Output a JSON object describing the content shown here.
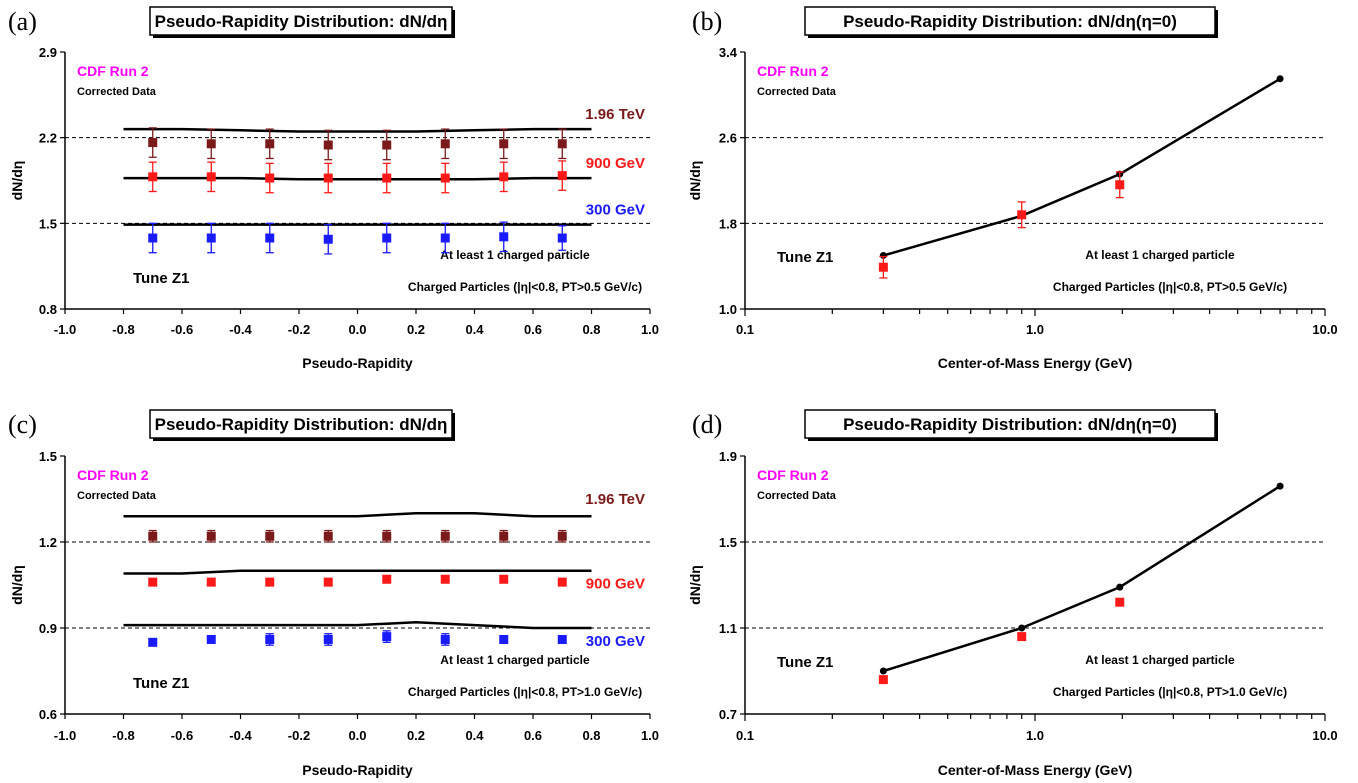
{
  "chart_data": [
    {
      "panel": "(a)",
      "type": "line",
      "title": "Pseudo-Rapidity Distribution: dN/dη",
      "xlabel": "Pseudo-Rapidity",
      "ylabel": "dN/dη",
      "xscale": "linear",
      "xlim": [
        -1.0,
        1.0
      ],
      "ylim": [
        0.8,
        2.9
      ],
      "xticks": [
        "-1.0",
        "-0.8",
        "-0.6",
        "-0.4",
        "-0.2",
        "0.0",
        "0.2",
        "0.4",
        "0.6",
        "0.8",
        "1.0"
      ],
      "yticks": [
        "0.8",
        "1.5",
        "2.2",
        "2.9"
      ],
      "gridlines_y": [
        1.5,
        2.2
      ],
      "experiment_label": "CDF Run 2",
      "data_label": "Corrected Data",
      "tune_label": "Tune Z1",
      "note1": "At least 1 charged particle",
      "note2": "Charged Particles (|η|<0.8, PT>0.5 GeV/c)",
      "series": [
        {
          "name": "1.96 TeV",
          "color": "#7b1a1a",
          "data_x": [
            -0.7,
            -0.5,
            -0.3,
            -0.1,
            0.1,
            0.3,
            0.5,
            0.7
          ],
          "data_y": [
            2.16,
            2.15,
            2.15,
            2.14,
            2.14,
            2.15,
            2.15,
            2.15
          ],
          "err": [
            0.12,
            0.12,
            0.12,
            0.12,
            0.12,
            0.12,
            0.12,
            0.12
          ],
          "model_x": [
            -0.8,
            -0.6,
            -0.4,
            -0.2,
            0.0,
            0.2,
            0.4,
            0.6,
            0.8
          ],
          "model_y": [
            2.27,
            2.27,
            2.26,
            2.25,
            2.25,
            2.25,
            2.26,
            2.27,
            2.27
          ]
        },
        {
          "name": "900 GeV",
          "color": "#ff1a1a",
          "data_x": [
            -0.7,
            -0.5,
            -0.3,
            -0.1,
            0.1,
            0.3,
            0.5,
            0.7
          ],
          "data_y": [
            1.88,
            1.88,
            1.87,
            1.87,
            1.87,
            1.87,
            1.88,
            1.89
          ],
          "err": [
            0.12,
            0.12,
            0.12,
            0.12,
            0.12,
            0.12,
            0.12,
            0.12
          ],
          "model_x": [
            -0.8,
            -0.6,
            -0.4,
            -0.2,
            0.0,
            0.2,
            0.4,
            0.6,
            0.8
          ],
          "model_y": [
            1.87,
            1.87,
            1.87,
            1.86,
            1.86,
            1.86,
            1.86,
            1.87,
            1.87
          ]
        },
        {
          "name": "300 GeV",
          "color": "#1a1aff",
          "data_x": [
            -0.7,
            -0.5,
            -0.3,
            -0.1,
            0.1,
            0.3,
            0.5,
            0.7
          ],
          "data_y": [
            1.38,
            1.38,
            1.38,
            1.37,
            1.38,
            1.38,
            1.39,
            1.38
          ],
          "err": [
            0.12,
            0.12,
            0.12,
            0.12,
            0.12,
            0.12,
            0.12,
            0.1
          ],
          "model_x": [
            -0.8,
            -0.6,
            -0.4,
            -0.2,
            0.0,
            0.2,
            0.4,
            0.6,
            0.8
          ],
          "model_y": [
            1.49,
            1.49,
            1.49,
            1.49,
            1.49,
            1.49,
            1.49,
            1.49,
            1.49
          ]
        }
      ]
    },
    {
      "panel": "(b)",
      "type": "line",
      "title": "Pseudo-Rapidity Distribution: dN/dη(η=0)",
      "xlabel": "Center-of-Mass Energy (GeV)",
      "ylabel": "dN/dη",
      "xscale": "log",
      "xlim": [
        0.1,
        10.0
      ],
      "ylim": [
        1.0,
        3.4
      ],
      "xticks": [
        "0.1",
        "1.0",
        "10.0"
      ],
      "yticks": [
        "1.0",
        "1.8",
        "2.6",
        "3.4"
      ],
      "gridlines_y": [
        1.8,
        2.6
      ],
      "experiment_label": "CDF Run 2",
      "data_label": "Corrected Data",
      "tune_label": "Tune Z1",
      "note1": "At least 1 charged particle",
      "note2": "Charged Particles (|η|<0.8, PT>0.5 GeV/c)",
      "data": {
        "color": "#ff1a1a",
        "x": [
          0.3,
          0.9,
          1.96
        ],
        "y": [
          1.39,
          1.88,
          2.16
        ],
        "err": [
          0.1,
          0.12,
          0.12
        ]
      },
      "model": {
        "color": "#000000",
        "x": [
          0.3,
          0.9,
          1.96,
          7.0
        ],
        "y": [
          1.5,
          1.87,
          2.26,
          3.15
        ]
      }
    },
    {
      "panel": "(c)",
      "type": "line",
      "title": "Pseudo-Rapidity Distribution: dN/dη",
      "xlabel": "Pseudo-Rapidity",
      "ylabel": "dN/dη",
      "xscale": "linear",
      "xlim": [
        -1.0,
        1.0
      ],
      "ylim": [
        0.6,
        1.5
      ],
      "xticks": [
        "-1.0",
        "-0.8",
        "-0.6",
        "-0.4",
        "-0.2",
        "0.0",
        "0.2",
        "0.4",
        "0.6",
        "0.8",
        "1.0"
      ],
      "yticks": [
        "0.6",
        "0.9",
        "1.2",
        "1.5"
      ],
      "gridlines_y": [
        0.9,
        1.2
      ],
      "experiment_label": "CDF Run 2",
      "data_label": "Corrected Data",
      "tune_label": "Tune Z1",
      "note1": "At least 1 charged particle",
      "note2": "Charged Particles (|η|<0.8, PT>1.0 GeV/c)",
      "series": [
        {
          "name": "1.96 TeV",
          "color": "#7b1a1a",
          "data_x": [
            -0.7,
            -0.5,
            -0.3,
            -0.1,
            0.1,
            0.3,
            0.5,
            0.7
          ],
          "data_y": [
            1.22,
            1.22,
            1.22,
            1.22,
            1.22,
            1.22,
            1.22,
            1.22
          ],
          "err": [
            0.02,
            0.02,
            0.02,
            0.02,
            0.02,
            0.02,
            0.02,
            0.02
          ],
          "model_x": [
            -0.8,
            -0.6,
            -0.4,
            -0.2,
            0.0,
            0.2,
            0.4,
            0.6,
            0.8
          ],
          "model_y": [
            1.29,
            1.29,
            1.29,
            1.29,
            1.29,
            1.3,
            1.3,
            1.29,
            1.29
          ]
        },
        {
          "name": "900 GeV",
          "color": "#ff1a1a",
          "data_x": [
            -0.7,
            -0.5,
            -0.3,
            -0.1,
            0.1,
            0.3,
            0.5,
            0.7
          ],
          "data_y": [
            1.06,
            1.06,
            1.06,
            1.06,
            1.07,
            1.07,
            1.07,
            1.06
          ],
          "err": [
            0.0,
            0.0,
            0.0,
            0.0,
            0.0,
            0.0,
            0.0,
            0.0
          ],
          "model_x": [
            -0.8,
            -0.6,
            -0.4,
            -0.2,
            0.0,
            0.2,
            0.4,
            0.6,
            0.8
          ],
          "model_y": [
            1.09,
            1.09,
            1.1,
            1.1,
            1.1,
            1.1,
            1.1,
            1.1,
            1.1
          ]
        },
        {
          "name": "300 GeV",
          "color": "#1a1aff",
          "data_x": [
            -0.7,
            -0.5,
            -0.3,
            -0.1,
            0.1,
            0.3,
            0.5,
            0.7
          ],
          "data_y": [
            0.85,
            0.86,
            0.86,
            0.86,
            0.87,
            0.86,
            0.86,
            0.86
          ],
          "err": [
            0.0,
            0.0,
            0.02,
            0.02,
            0.02,
            0.02,
            0.0,
            0.0
          ],
          "model_x": [
            -0.8,
            -0.6,
            -0.4,
            -0.2,
            0.0,
            0.2,
            0.4,
            0.6,
            0.8
          ],
          "model_y": [
            0.91,
            0.91,
            0.91,
            0.91,
            0.91,
            0.92,
            0.91,
            0.9,
            0.9
          ]
        }
      ]
    },
    {
      "panel": "(d)",
      "type": "line",
      "title": "Pseudo-Rapidity Distribution: dN/dη(η=0)",
      "xlabel": "Center-of-Mass Energy (GeV)",
      "ylabel": "dN/dη",
      "xscale": "log",
      "xlim": [
        0.1,
        10.0
      ],
      "ylim": [
        0.7,
        1.9
      ],
      "xticks": [
        "0.1",
        "1.0",
        "10.0"
      ],
      "yticks": [
        "0.7",
        "1.1",
        "1.5",
        "1.9"
      ],
      "gridlines_y": [
        1.1,
        1.5
      ],
      "experiment_label": "CDF Run 2",
      "data_label": "Corrected Data",
      "tune_label": "Tune Z1",
      "note1": "At least 1 charged particle",
      "note2": "Charged Particles (|η|<0.8, PT>1.0 GeV/c)",
      "data": {
        "color": "#ff1a1a",
        "x": [
          0.3,
          0.9,
          1.96
        ],
        "y": [
          0.86,
          1.06,
          1.22
        ],
        "err": [
          0.0,
          0.0,
          0.0
        ]
      },
      "model": {
        "color": "#000000",
        "x": [
          0.3,
          0.9,
          1.96,
          7.0
        ],
        "y": [
          0.9,
          1.1,
          1.29,
          1.76
        ]
      }
    }
  ]
}
